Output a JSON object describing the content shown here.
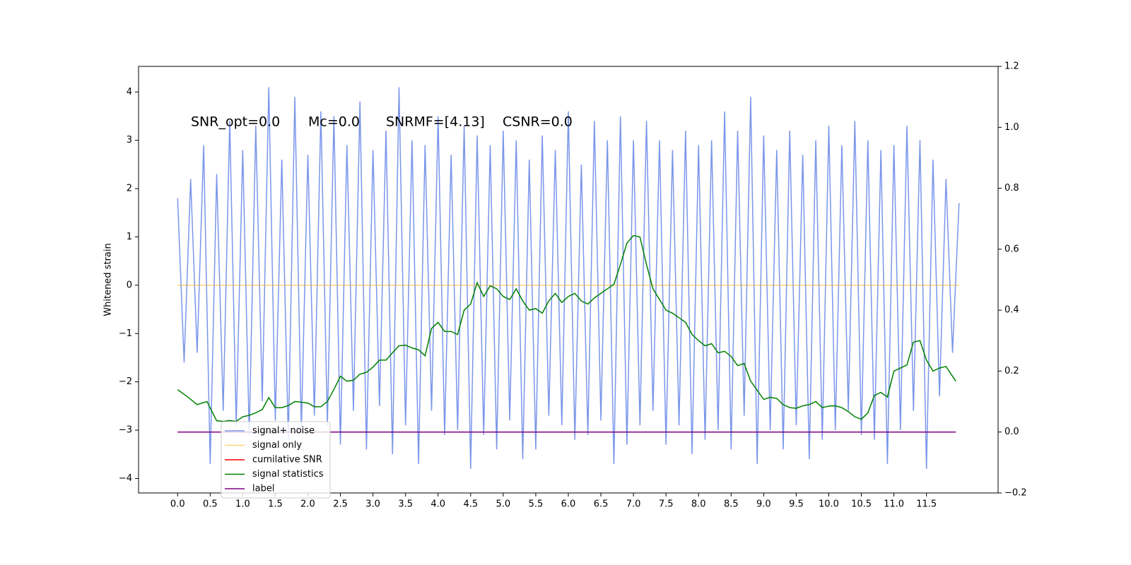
{
  "chart_data": {
    "type": "line",
    "ylabel": "Whitened strain",
    "annotations": [
      "SNR_opt=0.0",
      "Mc=0.0",
      "SNRMF=[4.13]",
      "CSNR=0.0"
    ],
    "xlim": [
      -0.6,
      12.6
    ],
    "ylim": [
      -4.3,
      4.53
    ],
    "y2lim": [
      -0.2,
      1.2
    ],
    "xticks": [
      {
        "value": 0,
        "label": "0.0"
      },
      {
        "value": 0.5,
        "label": "0.5"
      },
      {
        "value": 1,
        "label": "1.0"
      },
      {
        "value": 1.5,
        "label": "1.5"
      },
      {
        "value": 2,
        "label": "2.0"
      },
      {
        "value": 2.5,
        "label": "2.5"
      },
      {
        "value": 3,
        "label": "3.0"
      },
      {
        "value": 3.5,
        "label": "3.5"
      },
      {
        "value": 4,
        "label": "4.0"
      },
      {
        "value": 4.5,
        "label": "4.5"
      },
      {
        "value": 5,
        "label": "5.0"
      },
      {
        "value": 5.5,
        "label": "5.5"
      },
      {
        "value": 6,
        "label": "6.0"
      },
      {
        "value": 6.5,
        "label": "6.5"
      },
      {
        "value": 7,
        "label": "7.0"
      },
      {
        "value": 7.5,
        "label": "7.5"
      },
      {
        "value": 8,
        "label": "8.0"
      },
      {
        "value": 8.5,
        "label": "8.5"
      },
      {
        "value": 9,
        "label": "9.0"
      },
      {
        "value": 9.5,
        "label": "9.5"
      },
      {
        "value": 10,
        "label": "10.0"
      },
      {
        "value": 10.5,
        "label": "10.5"
      },
      {
        "value": 11,
        "label": "11.0"
      },
      {
        "value": 11.5,
        "label": "11.5"
      }
    ],
    "yticks": [
      {
        "value": -4,
        "label": "−4"
      },
      {
        "value": -3,
        "label": "−3"
      },
      {
        "value": -2,
        "label": "−2"
      },
      {
        "value": -1,
        "label": "−1"
      },
      0,
      1,
      2,
      3,
      4
    ],
    "y2ticks": [
      {
        "value": -0.2,
        "label": "−0.2"
      },
      {
        "value": 0,
        "label": "0.0"
      },
      0.2,
      0.4,
      0.6,
      0.8,
      {
        "value": 1,
        "label": "1.0"
      },
      1.2
    ],
    "series": [
      {
        "name": "signal+ noise",
        "color": "#4169e1",
        "x": [
          0,
          0.1,
          0.2,
          0.3,
          0.4,
          0.5,
          0.6,
          0.7,
          0.8,
          0.9,
          1,
          1.1,
          1.2,
          1.3,
          1.4,
          1.5,
          1.6,
          1.7,
          1.8,
          1.9,
          2,
          2.1,
          2.2,
          2.3,
          2.4,
          2.5,
          2.6,
          2.7,
          2.8,
          2.9,
          3,
          3.1,
          3.2,
          3.3,
          3.4,
          3.5,
          3.6,
          3.7,
          3.8,
          3.9,
          4,
          4.1,
          4.2,
          4.3,
          4.4,
          4.5,
          4.6,
          4.7,
          4.8,
          4.9,
          5,
          5.1,
          5.2,
          5.3,
          5.4,
          5.5,
          5.6,
          5.7,
          5.8,
          5.9,
          6,
          6.1,
          6.2,
          6.3,
          6.4,
          6.5,
          6.6,
          6.7,
          6.8,
          6.9,
          7,
          7.1,
          7.2,
          7.3,
          7.4,
          7.5,
          7.6,
          7.7,
          7.8,
          7.9,
          8,
          8.1,
          8.2,
          8.3,
          8.4,
          8.5,
          8.6,
          8.7,
          8.8,
          8.9,
          9,
          9.1,
          9.2,
          9.3,
          9.4,
          9.5,
          9.6,
          9.7,
          9.8,
          9.9,
          10,
          10.1,
          10.2,
          10.3,
          10.4,
          10.5,
          10.6,
          10.7,
          10.8,
          10.9,
          11,
          11.1,
          11.2,
          11.3,
          11.4,
          11.5,
          11.6,
          11.7,
          11.8,
          11.9,
          12
        ],
        "values": [
          1.8,
          -1.6,
          2.2,
          -1.4,
          2.9,
          -3.7,
          2.3,
          -2.6,
          3.4,
          -2.9,
          2.8,
          -3.1,
          3.3,
          -2.4,
          4.1,
          -2.8,
          2.6,
          -3.2,
          3.9,
          -3.0,
          2.7,
          -2.7,
          3.6,
          -2.9,
          3.5,
          -3.3,
          2.9,
          -2.6,
          3.8,
          -3.4,
          2.8,
          -2.5,
          3.2,
          -3.5,
          4.1,
          -2.9,
          3.0,
          -3.7,
          2.9,
          -2.6,
          3.5,
          -3.1,
          2.7,
          -3.0,
          3.3,
          -3.8,
          3.1,
          -3.1,
          2.9,
          -3.4,
          3.2,
          -2.8,
          3.0,
          -3.6,
          2.6,
          -3.4,
          3.1,
          -2.7,
          2.8,
          -2.9,
          3.6,
          -3.2,
          2.5,
          -3.1,
          3.4,
          -2.8,
          3.0,
          -3.7,
          3.5,
          -3.3,
          3.0,
          -2.9,
          3.4,
          -2.6,
          3.0,
          -3.3,
          2.8,
          -2.9,
          3.2,
          -3.5,
          2.9,
          -3.2,
          3.0,
          -3.0,
          3.6,
          -3.4,
          3.2,
          -2.7,
          3.9,
          -3.7,
          3.1,
          -3.0,
          2.8,
          -3.4,
          3.2,
          -2.9,
          2.7,
          -3.6,
          3.0,
          -3.2,
          3.3,
          -3.0,
          2.9,
          -2.6,
          3.4,
          -3.1,
          3.0,
          -3.2,
          2.8,
          -3.7,
          2.9,
          -3.0,
          3.3,
          -2.6,
          3.0,
          -3.8,
          2.6,
          -2.3,
          2.2,
          -1.4,
          1.7
        ]
      },
      {
        "name": "signal only",
        "color": "#ffa500",
        "x": [
          0,
          12
        ],
        "values": [
          0,
          0
        ]
      },
      {
        "name": "cumilative SNR",
        "color": "#ff0000",
        "axis": "y2",
        "x": [
          0,
          11.95
        ],
        "values": [
          0,
          0
        ]
      },
      {
        "name": "signal statistics",
        "color": "#008000",
        "axis": "y2",
        "x": [
          0,
          0.15,
          0.3,
          0.45,
          0.6,
          0.7,
          0.8,
          0.9,
          1,
          1.1,
          1.2,
          1.3,
          1.4,
          1.5,
          1.6,
          1.7,
          1.8,
          1.9,
          2,
          2.1,
          2.2,
          2.3,
          2.4,
          2.5,
          2.6,
          2.7,
          2.8,
          2.9,
          3,
          3.1,
          3.2,
          3.3,
          3.4,
          3.5,
          3.6,
          3.7,
          3.8,
          3.9,
          4,
          4.1,
          4.2,
          4.3,
          4.4,
          4.5,
          4.6,
          4.7,
          4.8,
          4.9,
          5,
          5.1,
          5.2,
          5.3,
          5.4,
          5.5,
          5.6,
          5.7,
          5.8,
          5.9,
          6,
          6.1,
          6.2,
          6.3,
          6.4,
          6.5,
          6.6,
          6.7,
          6.8,
          6.9,
          7,
          7.1,
          7.2,
          7.3,
          7.4,
          7.5,
          7.6,
          7.7,
          7.8,
          7.9,
          8,
          8.1,
          8.2,
          8.3,
          8.4,
          8.5,
          8.6,
          8.7,
          8.8,
          8.9,
          9,
          9.1,
          9.2,
          9.3,
          9.4,
          9.5,
          9.6,
          9.7,
          9.8,
          9.9,
          10,
          10.1,
          10.2,
          10.3,
          10.4,
          10.5,
          10.6,
          10.7,
          10.8,
          10.9,
          11,
          11.1,
          11.2,
          11.3,
          11.4,
          11.5,
          11.6,
          11.7,
          11.8,
          11.95
        ],
        "values": [
          0.139,
          0.116,
          0.09,
          0.1,
          0.037,
          0.035,
          0.038,
          0.035,
          0.05,
          0.055,
          0.063,
          0.074,
          0.113,
          0.08,
          0.08,
          0.087,
          0.1,
          0.098,
          0.095,
          0.083,
          0.083,
          0.1,
          0.14,
          0.183,
          0.167,
          0.17,
          0.19,
          0.196,
          0.213,
          0.236,
          0.236,
          0.26,
          0.283,
          0.285,
          0.276,
          0.27,
          0.25,
          0.34,
          0.36,
          0.33,
          0.33,
          0.32,
          0.4,
          0.42,
          0.49,
          0.445,
          0.48,
          0.47,
          0.445,
          0.435,
          0.47,
          0.43,
          0.4,
          0.405,
          0.39,
          0.43,
          0.455,
          0.425,
          0.445,
          0.455,
          0.43,
          0.42,
          0.44,
          0.455,
          0.47,
          0.485,
          0.55,
          0.62,
          0.645,
          0.64,
          0.55,
          0.47,
          0.435,
          0.4,
          0.39,
          0.375,
          0.36,
          0.32,
          0.3,
          0.283,
          0.29,
          0.26,
          0.265,
          0.248,
          0.218,
          0.225,
          0.167,
          0.137,
          0.107,
          0.114,
          0.11,
          0.09,
          0.08,
          0.078,
          0.086,
          0.09,
          0.1,
          0.08,
          0.085,
          0.086,
          0.08,
          0.067,
          0.05,
          0.042,
          0.063,
          0.12,
          0.13,
          0.115,
          0.2,
          0.21,
          0.22,
          0.295,
          0.3,
          0.236,
          0.2,
          0.21,
          0.215,
          0.167
        ]
      },
      {
        "name": "label",
        "color": "#800080",
        "axis": "y2",
        "x": [
          0,
          11.95
        ],
        "values": [
          0,
          0
        ]
      }
    ]
  }
}
